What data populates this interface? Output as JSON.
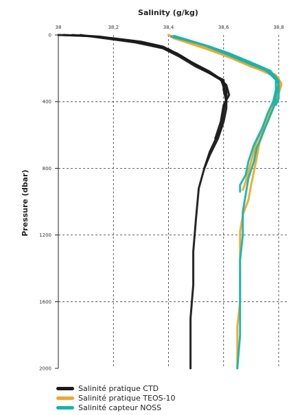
{
  "chart_data": {
    "type": "line",
    "xlabel": "Salinity (g/kg)",
    "ylabel": "Pressure (dbar)",
    "xlim": [
      38.0,
      38.8
    ],
    "ylim": [
      2000,
      0
    ],
    "x_ticks": [
      "38",
      "38,2",
      "38,4",
      "38,6",
      "38,8"
    ],
    "x_tick_values": [
      38.0,
      38.2,
      38.4,
      38.6,
      38.8
    ],
    "y_ticks": [
      "0",
      "400",
      "800",
      "1200",
      "1600",
      "2000"
    ],
    "y_tick_values": [
      0,
      400,
      800,
      1200,
      1600,
      2000
    ],
    "grid": "dashed vertical and horizontal at ticks",
    "legend_position": "bottom-left",
    "series": [
      {
        "name": "Salinité pratique CTD",
        "color": "#1a1a1a",
        "profiles": [
          [
            [
              38.0,
              0
            ],
            [
              38.1,
              5
            ],
            [
              38.2,
              20
            ],
            [
              38.3,
              40
            ],
            [
              38.38,
              70
            ],
            [
              38.44,
              120
            ],
            [
              38.5,
              180
            ],
            [
              38.56,
              240
            ],
            [
              38.6,
              280
            ],
            [
              38.61,
              320
            ],
            [
              38.61,
              380
            ],
            [
              38.6,
              460
            ],
            [
              38.59,
              560
            ],
            [
              38.55,
              700
            ],
            [
              38.53,
              800
            ],
            [
              38.51,
              920
            ],
            [
              38.5,
              1100
            ],
            [
              38.49,
              1300
            ],
            [
              38.49,
              1500
            ],
            [
              38.48,
              1700
            ],
            [
              38.48,
              1850
            ],
            [
              38.48,
              2000
            ]
          ],
          [
            [
              38.02,
              0
            ],
            [
              38.12,
              8
            ],
            [
              38.22,
              25
            ],
            [
              38.32,
              50
            ],
            [
              38.4,
              85
            ],
            [
              38.46,
              140
            ],
            [
              38.52,
              200
            ],
            [
              38.58,
              255
            ],
            [
              38.61,
              300
            ],
            [
              38.62,
              360
            ],
            [
              38.6,
              420
            ],
            [
              38.59,
              520
            ],
            [
              38.57,
              620
            ]
          ],
          [
            [
              38.05,
              0
            ],
            [
              38.15,
              10
            ],
            [
              38.26,
              35
            ],
            [
              38.36,
              65
            ],
            [
              38.43,
              110
            ],
            [
              38.48,
              160
            ],
            [
              38.55,
              220
            ],
            [
              38.59,
              265
            ],
            [
              38.6,
              310
            ],
            [
              38.61,
              360
            ],
            [
              38.61,
              440
            ],
            [
              38.6,
              520
            ],
            [
              38.58,
              620
            ],
            [
              38.55,
              720
            ],
            [
              38.53,
              800
            ]
          ],
          [
            [
              38.08,
              0
            ],
            [
              38.17,
              20
            ],
            [
              38.28,
              45
            ],
            [
              38.38,
              80
            ],
            [
              38.44,
              130
            ],
            [
              38.5,
              190
            ],
            [
              38.55,
              230
            ],
            [
              38.6,
              270
            ],
            [
              38.6,
              330
            ],
            [
              38.61,
              400
            ]
          ]
        ]
      },
      {
        "name": "Salinité pratique TEOS-10",
        "color": "#f5a623",
        "profiles": [
          [
            [
              38.4,
              0
            ],
            [
              38.42,
              20
            ],
            [
              38.5,
              60
            ],
            [
              38.6,
              120
            ],
            [
              38.68,
              170
            ],
            [
              38.75,
              210
            ],
            [
              38.79,
              240
            ],
            [
              38.8,
              280
            ],
            [
              38.8,
              330
            ],
            [
              38.79,
              400
            ],
            [
              38.77,
              480
            ],
            [
              38.75,
              560
            ],
            [
              38.73,
              650
            ],
            [
              38.72,
              740
            ],
            [
              38.71,
              820
            ],
            [
              38.7,
              900
            ],
            [
              38.69,
              990
            ],
            [
              38.67,
              1080
            ],
            [
              38.66,
              1180
            ],
            [
              38.66,
              1300
            ],
            [
              38.66,
              1450
            ],
            [
              38.66,
              1600
            ],
            [
              38.65,
              1750
            ],
            [
              38.65,
              1900
            ],
            [
              38.65,
              2000
            ]
          ],
          [
            [
              38.4,
              0
            ],
            [
              38.44,
              30
            ],
            [
              38.55,
              90
            ],
            [
              38.63,
              140
            ],
            [
              38.7,
              190
            ],
            [
              38.77,
              230
            ],
            [
              38.8,
              260
            ],
            [
              38.81,
              300
            ],
            [
              38.8,
              350
            ],
            [
              38.79,
              410
            ]
          ],
          [
            [
              38.42,
              10
            ],
            [
              38.47,
              40
            ],
            [
              38.58,
              100
            ],
            [
              38.66,
              155
            ],
            [
              38.74,
              205
            ],
            [
              38.79,
              250
            ],
            [
              38.81,
              290
            ],
            [
              38.8,
              340
            ]
          ],
          [
            [
              38.41,
              5
            ],
            [
              38.46,
              35
            ],
            [
              38.56,
              95
            ],
            [
              38.65,
              150
            ],
            [
              38.72,
              200
            ],
            [
              38.78,
              245
            ],
            [
              38.8,
              285
            ],
            [
              38.79,
              370
            ],
            [
              38.76,
              500
            ],
            [
              38.72,
              640
            ],
            [
              38.7,
              760
            ],
            [
              38.68,
              880
            ],
            [
              38.67,
              930
            ]
          ]
        ]
      },
      {
        "name": "Salinité capteur NOSS",
        "color": "#13b5b1",
        "profiles": [
          [
            [
              38.41,
              10
            ],
            [
              38.45,
              25
            ],
            [
              38.53,
              60
            ],
            [
              38.62,
              110
            ],
            [
              38.7,
              165
            ],
            [
              38.77,
              215
            ],
            [
              38.79,
              260
            ],
            [
              38.79,
              310
            ],
            [
              38.79,
              380
            ],
            [
              38.78,
              440
            ],
            [
              38.76,
              520
            ],
            [
              38.74,
              600
            ],
            [
              38.72,
              680
            ],
            [
              38.71,
              760
            ],
            [
              38.69,
              860
            ],
            [
              38.68,
              960
            ],
            [
              38.67,
              1060
            ],
            [
              38.67,
              1200
            ],
            [
              38.66,
              1350
            ],
            [
              38.66,
              1500
            ],
            [
              38.66,
              1650
            ],
            [
              38.66,
              1800
            ],
            [
              38.65,
              2000
            ]
          ],
          [
            [
              38.42,
              5
            ],
            [
              38.5,
              45
            ],
            [
              38.6,
              100
            ],
            [
              38.67,
              150
            ],
            [
              38.74,
              195
            ],
            [
              38.78,
              235
            ],
            [
              38.8,
              275
            ],
            [
              38.8,
              320
            ],
            [
              38.8,
              380
            ],
            [
              38.79,
              420
            ]
          ],
          [
            [
              38.44,
              20
            ],
            [
              38.55,
              70
            ],
            [
              38.64,
              125
            ],
            [
              38.72,
              180
            ],
            [
              38.76,
              220
            ],
            [
              38.79,
              270
            ],
            [
              38.79,
              330
            ],
            [
              38.78,
              400
            ],
            [
              38.76,
              470
            ],
            [
              38.74,
              560
            ],
            [
              38.71,
              660
            ],
            [
              38.69,
              760
            ],
            [
              38.68,
              840
            ],
            [
              38.66,
              900
            ],
            [
              38.66,
              940
            ]
          ],
          [
            [
              38.43,
              15
            ],
            [
              38.52,
              55
            ],
            [
              38.61,
              115
            ],
            [
              38.69,
              170
            ],
            [
              38.75,
              210
            ],
            [
              38.79,
              250
            ],
            [
              38.8,
              300
            ],
            [
              38.79,
              360
            ]
          ]
        ]
      }
    ]
  }
}
